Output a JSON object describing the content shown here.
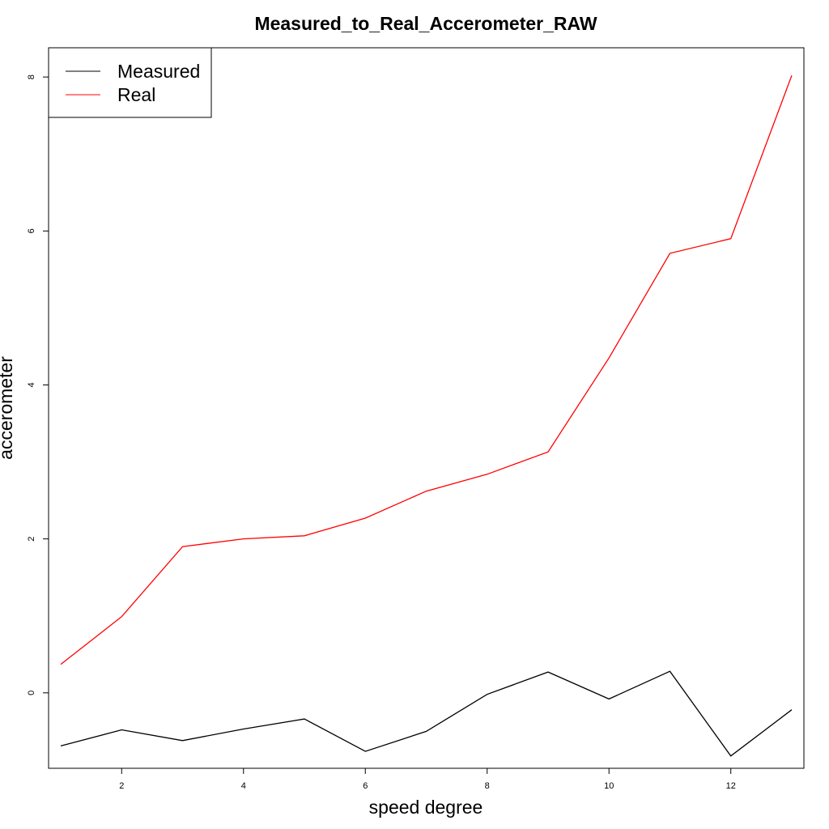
{
  "chart_data": {
    "type": "line",
    "title": "Measured_to_Real_Accerometer_RAW",
    "xlabel": "speed degree",
    "ylabel": "accerometer",
    "x": [
      1,
      2,
      3,
      4,
      5,
      6,
      7,
      8,
      9,
      10,
      11,
      12,
      13
    ],
    "xlim": [
      0.8,
      13.2
    ],
    "ylim": [
      -0.98,
      8.38
    ],
    "xticks": [
      2,
      4,
      6,
      8,
      10,
      12
    ],
    "yticks": [
      0,
      2,
      4,
      6,
      8
    ],
    "grid": false,
    "legend": {
      "position": "top-left"
    },
    "series": [
      {
        "name": "Measured",
        "color": "#000000",
        "values": [
          -0.69,
          -0.48,
          -0.62,
          -0.47,
          -0.34,
          -0.76,
          -0.5,
          -0.02,
          0.27,
          -0.08,
          0.28,
          -0.82,
          -0.22
        ]
      },
      {
        "name": "Real",
        "color": "#ff0000",
        "values": [
          0.37,
          0.99,
          1.9,
          2.0,
          2.04,
          2.27,
          2.62,
          2.84,
          3.13,
          4.35,
          5.71,
          5.9,
          8.02
        ]
      }
    ]
  }
}
